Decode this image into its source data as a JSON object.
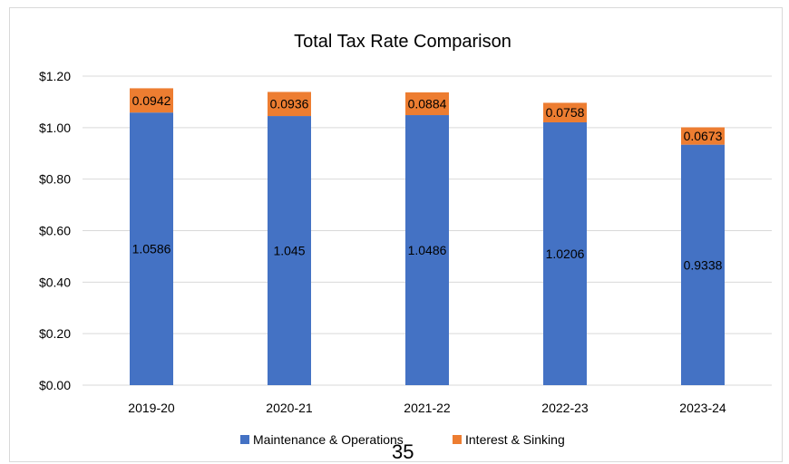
{
  "chart_data": {
    "type": "bar",
    "stacked": true,
    "title": "Total Tax Rate Comparison",
    "xlabel": "",
    "ylabel": "",
    "categories": [
      "2019-20",
      "2020-21",
      "2021-22",
      "2022-23",
      "2023-24"
    ],
    "series": [
      {
        "name": "Maintenance & Operations",
        "color": "#4472C4",
        "values": [
          1.0586,
          1.045,
          1.0486,
          1.0206,
          0.9338
        ],
        "labels": [
          "1.0586",
          "1.045",
          "1.0486",
          "1.0206",
          "0.9338"
        ]
      },
      {
        "name": "Interest & Sinking",
        "color": "#ED7D31",
        "values": [
          0.0942,
          0.0936,
          0.0884,
          0.0758,
          0.0673
        ],
        "labels": [
          "0.0942",
          "0.0936",
          "0.0884",
          "0.0758",
          "0.0673"
        ]
      }
    ],
    "ylim": [
      0,
      1.2
    ],
    "yticks": [
      0,
      0.2,
      0.4,
      0.6,
      0.8,
      1.0,
      1.2
    ],
    "ytick_labels": [
      "$0.00",
      "$0.20",
      "$0.40",
      "$0.60",
      "$0.80",
      "$1.00",
      "$1.20"
    ],
    "grid": true,
    "legend_position": "bottom"
  },
  "page_number": "35"
}
